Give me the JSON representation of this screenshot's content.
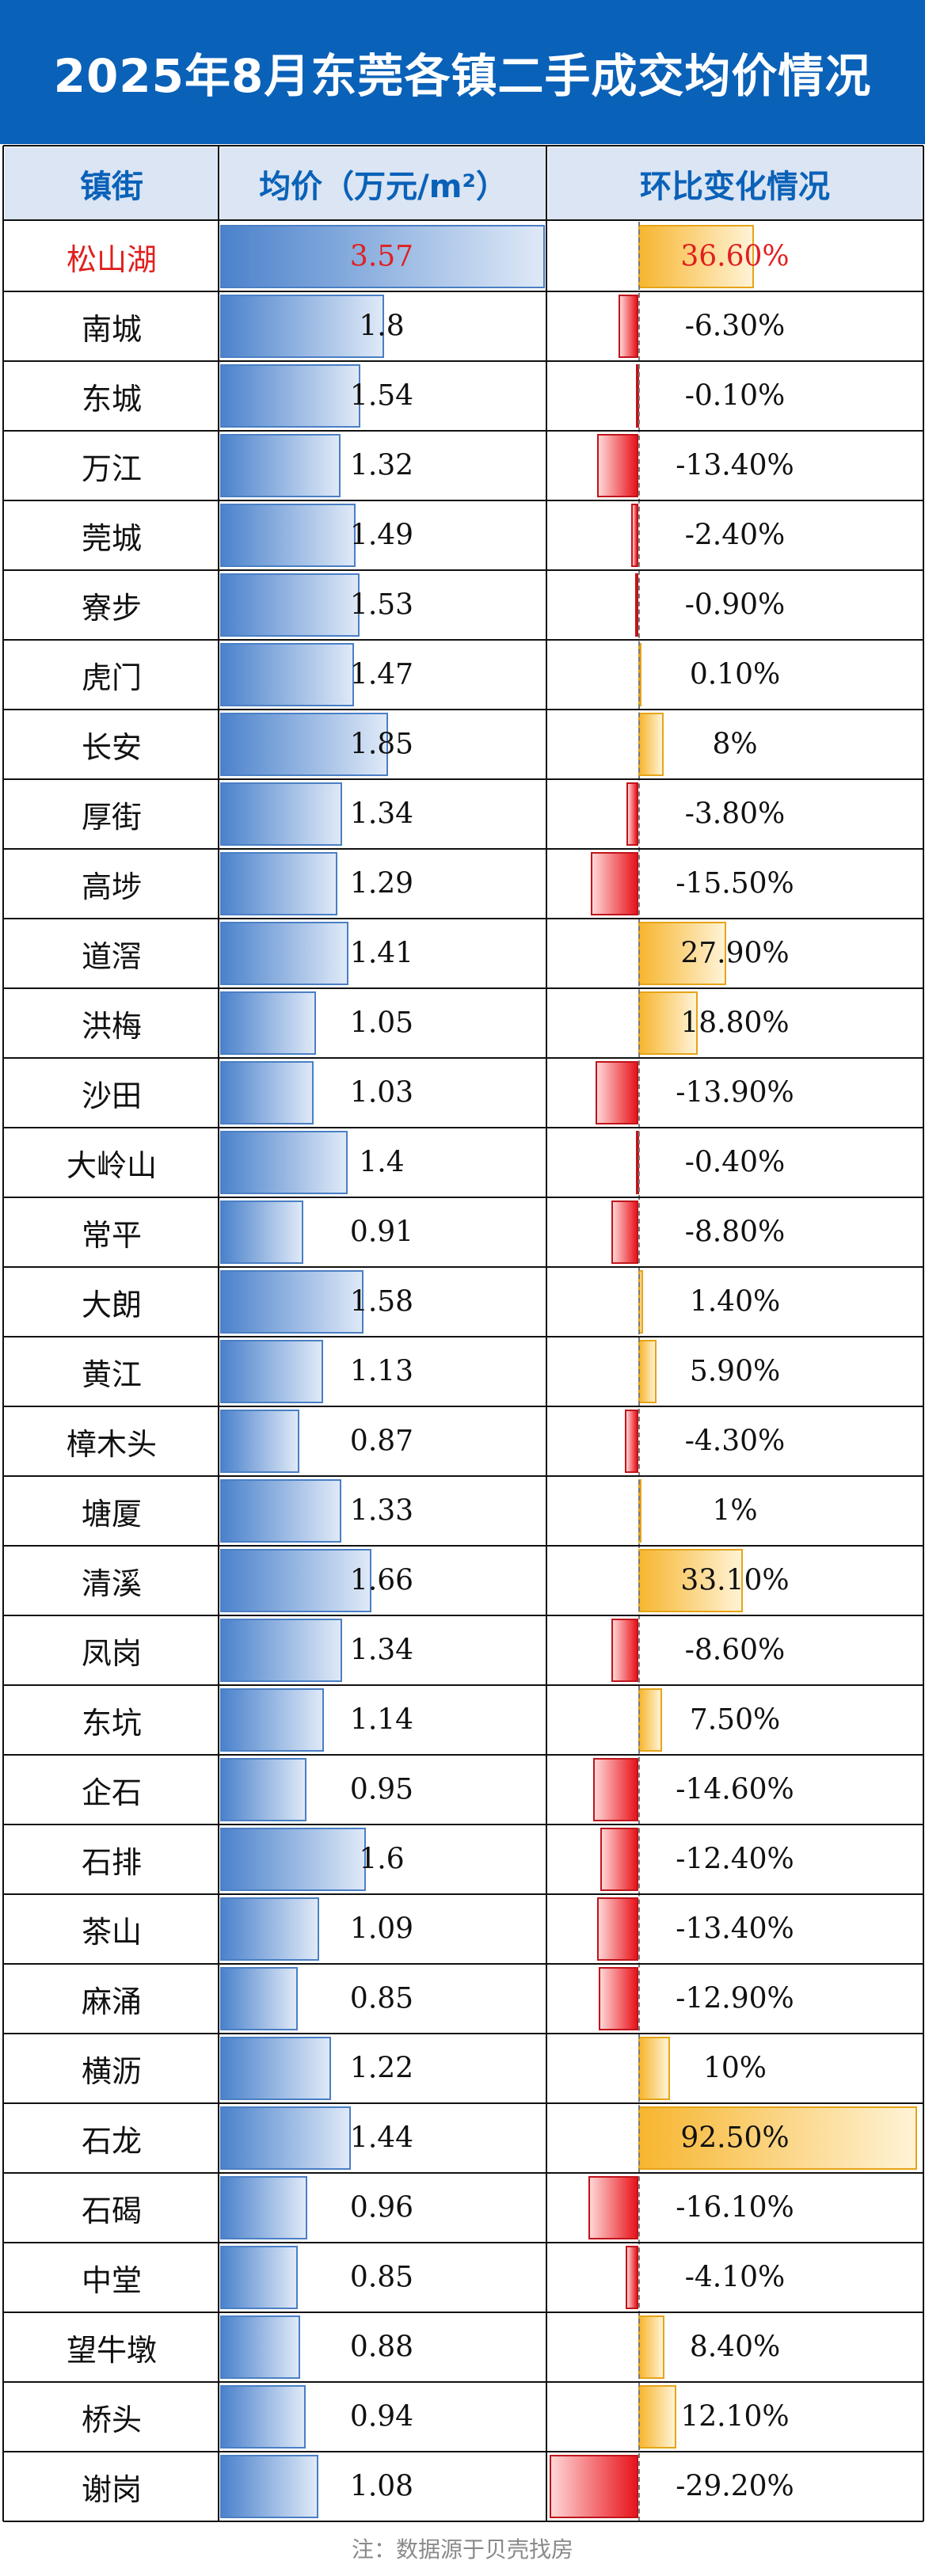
{
  "title": "2025年8月东莞各镇二手成交均价情况",
  "headers": {
    "town": "镇街",
    "price": "均价（万元/m²）",
    "change": "环比变化情况"
  },
  "footer": "注：数据源于贝壳找房",
  "colors": {
    "title_bg": "#0a61b8",
    "header_bg": "#dbe5f3",
    "price_bar": "#4b82cc",
    "positive_bar": "#f7b630",
    "negative_bar": "#e8141c",
    "highlight_text": "#e02020"
  },
  "chart_data": {
    "type": "table",
    "highlight_index": 0,
    "rows": [
      {
        "town": "松山湖",
        "price": 3.57,
        "price_label": "3.57",
        "change": 36.6,
        "change_label": "36.60%"
      },
      {
        "town": "南城",
        "price": 1.8,
        "price_label": "1.8",
        "change": -6.3,
        "change_label": "-6.30%"
      },
      {
        "town": "东城",
        "price": 1.54,
        "price_label": "1.54",
        "change": -0.1,
        "change_label": "-0.10%"
      },
      {
        "town": "万江",
        "price": 1.32,
        "price_label": "1.32",
        "change": -13.4,
        "change_label": "-13.40%"
      },
      {
        "town": "莞城",
        "price": 1.49,
        "price_label": "1.49",
        "change": -2.4,
        "change_label": "-2.40%"
      },
      {
        "town": "寮步",
        "price": 1.53,
        "price_label": "1.53",
        "change": -0.9,
        "change_label": "-0.90%"
      },
      {
        "town": "虎门",
        "price": 1.47,
        "price_label": "1.47",
        "change": 0.1,
        "change_label": "0.10%"
      },
      {
        "town": "长安",
        "price": 1.85,
        "price_label": "1.85",
        "change": 8,
        "change_label": "8%"
      },
      {
        "town": "厚街",
        "price": 1.34,
        "price_label": "1.34",
        "change": -3.8,
        "change_label": "-3.80%"
      },
      {
        "town": "高埗",
        "price": 1.29,
        "price_label": "1.29",
        "change": -15.5,
        "change_label": "-15.50%"
      },
      {
        "town": "道滘",
        "price": 1.41,
        "price_label": "1.41",
        "change": 27.9,
        "change_label": "27.90%"
      },
      {
        "town": "洪梅",
        "price": 1.05,
        "price_label": "1.05",
        "change": 18.8,
        "change_label": "18.80%"
      },
      {
        "town": "沙田",
        "price": 1.03,
        "price_label": "1.03",
        "change": -13.9,
        "change_label": "-13.90%"
      },
      {
        "town": "大岭山",
        "price": 1.4,
        "price_label": "1.4",
        "change": -0.4,
        "change_label": "-0.40%"
      },
      {
        "town": "常平",
        "price": 0.91,
        "price_label": "0.91",
        "change": -8.8,
        "change_label": "-8.80%"
      },
      {
        "town": "大朗",
        "price": 1.58,
        "price_label": "1.58",
        "change": 1.4,
        "change_label": "1.40%"
      },
      {
        "town": "黄江",
        "price": 1.13,
        "price_label": "1.13",
        "change": 5.9,
        "change_label": "5.90%"
      },
      {
        "town": "樟木头",
        "price": 0.87,
        "price_label": "0.87",
        "change": -4.3,
        "change_label": "-4.30%"
      },
      {
        "town": "塘厦",
        "price": 1.33,
        "price_label": "1.33",
        "change": 1,
        "change_label": "1%"
      },
      {
        "town": "清溪",
        "price": 1.66,
        "price_label": "1.66",
        "change": 33.1,
        "change_label": "33.10%"
      },
      {
        "town": "凤岗",
        "price": 1.34,
        "price_label": "1.34",
        "change": -8.6,
        "change_label": "-8.60%"
      },
      {
        "town": "东坑",
        "price": 1.14,
        "price_label": "1.14",
        "change": 7.5,
        "change_label": "7.50%"
      },
      {
        "town": "企石",
        "price": 0.95,
        "price_label": "0.95",
        "change": -14.6,
        "change_label": "-14.60%"
      },
      {
        "town": "石排",
        "price": 1.6,
        "price_label": "1.6",
        "change": -12.4,
        "change_label": "-12.40%"
      },
      {
        "town": "茶山",
        "price": 1.09,
        "price_label": "1.09",
        "change": -13.4,
        "change_label": "-13.40%"
      },
      {
        "town": "麻涌",
        "price": 0.85,
        "price_label": "0.85",
        "change": -12.9,
        "change_label": "-12.90%"
      },
      {
        "town": "横沥",
        "price": 1.22,
        "price_label": "1.22",
        "change": 10,
        "change_label": "10%"
      },
      {
        "town": "石龙",
        "price": 1.44,
        "price_label": "1.44",
        "change": 92.5,
        "change_label": "92.50%"
      },
      {
        "town": "石碣",
        "price": 0.96,
        "price_label": "0.96",
        "change": -16.1,
        "change_label": "-16.10%"
      },
      {
        "town": "中堂",
        "price": 0.85,
        "price_label": "0.85",
        "change": -4.1,
        "change_label": "-4.10%"
      },
      {
        "town": "望牛墩",
        "price": 0.88,
        "price_label": "0.88",
        "change": 8.4,
        "change_label": "8.40%"
      },
      {
        "town": "桥头",
        "price": 0.94,
        "price_label": "0.94",
        "change": 12.1,
        "change_label": "12.10%"
      },
      {
        "town": "谢岗",
        "price": 1.08,
        "price_label": "1.08",
        "change": -29.2,
        "change_label": "-29.20%"
      }
    ]
  }
}
